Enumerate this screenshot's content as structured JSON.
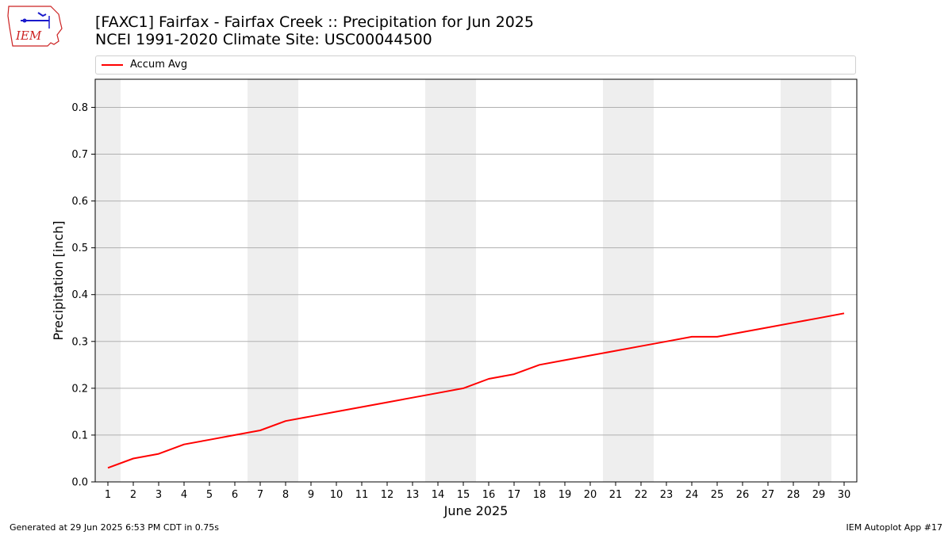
{
  "header": {
    "title_line1": "[FAXC1] Fairfax - Fairfax Creek :: Precipitation for Jun 2025",
    "title_line2": "NCEI 1991-2020 Climate Site: USC00044500",
    "logo_text": "IEM"
  },
  "footer": {
    "left": "Generated at 29 Jun 2025 6:53 PM CDT in 0.75s",
    "right": "IEM Autoplot App #17"
  },
  "colors": {
    "series_line": "#ff0000",
    "weekend_band": "#eeeeee",
    "grid": "#b0b0b0",
    "logo_red": "#cc2222",
    "logo_blue": "#1a1acc"
  },
  "chart_data": {
    "type": "line",
    "title": "[FAXC1] Fairfax - Fairfax Creek :: Precipitation for Jun 2025",
    "subtitle": "NCEI 1991-2020 Climate Site: USC00044500",
    "xlabel": "June 2025",
    "ylabel": "Precipitation [inch]",
    "xlim": [
      0.5,
      30.5
    ],
    "ylim": [
      0,
      0.86
    ],
    "x_ticks": [
      1,
      2,
      3,
      4,
      5,
      6,
      7,
      8,
      9,
      10,
      11,
      12,
      13,
      14,
      15,
      16,
      17,
      18,
      19,
      20,
      21,
      22,
      23,
      24,
      25,
      26,
      27,
      28,
      29,
      30
    ],
    "y_ticks": [
      "0.0",
      "0.1",
      "0.2",
      "0.3",
      "0.4",
      "0.5",
      "0.6",
      "0.7",
      "0.8"
    ],
    "grid": "horizontal",
    "legend_position": "top",
    "weekend_bands": [
      [
        0.5,
        1.5
      ],
      [
        6.5,
        8.5
      ],
      [
        13.5,
        15.5
      ],
      [
        20.5,
        22.5
      ],
      [
        27.5,
        29.5
      ]
    ],
    "series": [
      {
        "name": "Accum Avg",
        "color": "#ff0000",
        "x": [
          1,
          2,
          3,
          4,
          5,
          6,
          7,
          8,
          9,
          10,
          11,
          12,
          13,
          14,
          15,
          16,
          17,
          18,
          19,
          20,
          21,
          22,
          23,
          24,
          25,
          26,
          27,
          28,
          29,
          30
        ],
        "values": [
          0.03,
          0.05,
          0.06,
          0.08,
          0.09,
          0.1,
          0.11,
          0.13,
          0.14,
          0.15,
          0.16,
          0.17,
          0.18,
          0.19,
          0.2,
          0.22,
          0.23,
          0.25,
          0.26,
          0.27,
          0.28,
          0.29,
          0.3,
          0.31,
          0.31,
          0.32,
          0.33,
          0.34,
          0.35,
          0.36
        ]
      }
    ]
  }
}
